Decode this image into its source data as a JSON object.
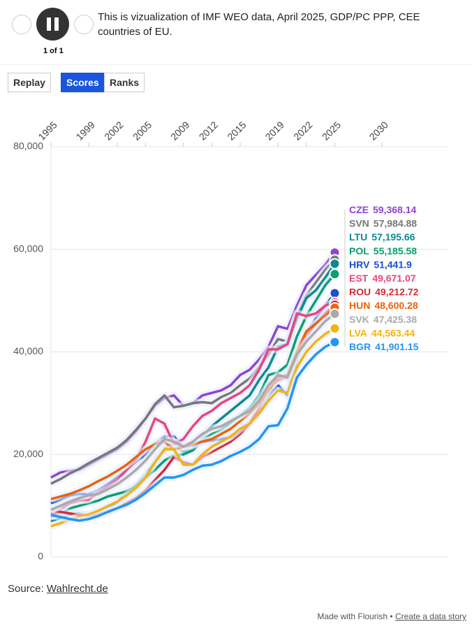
{
  "ui": {
    "title": "This is vizualization of IMF WEO data, April 2025, GDP/PC PPP, CEE countries of EU.",
    "counter": "1 of 1",
    "buttons": [
      "Replay",
      "Scores",
      "Ranks"
    ],
    "source_prefix": "Source:",
    "source_link": "Wahlrecht.de",
    "footer_made": "Made with Flourish •",
    "footer_link": "Create a data story"
  },
  "chart_data": {
    "type": "line",
    "x": [
      1995,
      1996,
      1997,
      1998,
      1999,
      2000,
      2001,
      2002,
      2003,
      2004,
      2005,
      2006,
      2007,
      2008,
      2009,
      2010,
      2011,
      2012,
      2013,
      2014,
      2015,
      2016,
      2017,
      2018,
      2019,
      2020,
      2021,
      2022,
      2023,
      2024,
      2025
    ],
    "xlim": [
      1995,
      2037
    ],
    "xticks": [
      1995,
      1999,
      2002,
      2005,
      2009,
      2012,
      2015,
      2019,
      2022,
      2025,
      2030
    ],
    "ylim": [
      0,
      80000
    ],
    "yticks": [
      0,
      {
        "value": 20000,
        "label": "20,000"
      },
      {
        "value": 40000,
        "label": "40,000"
      },
      {
        "value": 60000,
        "label": "60,000"
      },
      {
        "value": 80000,
        "label": "80,000"
      }
    ],
    "grid": true,
    "series": [
      {
        "name": "CZE",
        "color": "#8e44d2",
        "end_label": "59,368.14",
        "values": [
          15500,
          16500,
          16800,
          17000,
          18000,
          19000,
          20000,
          21000,
          22500,
          24500,
          27000,
          29500,
          31000,
          31500,
          29500,
          30000,
          31500,
          32000,
          32500,
          33500,
          35500,
          36500,
          38500,
          41000,
          45000,
          44500,
          49000,
          53000,
          55000,
          57000,
          59368.14
        ]
      },
      {
        "name": "SVN",
        "color": "#777777",
        "end_label": "57,984.88",
        "values": [
          14300,
          15200,
          16300,
          17200,
          18300,
          19300,
          20300,
          21300,
          22800,
          24800,
          27000,
          29800,
          31500,
          29200,
          29500,
          30000,
          30200,
          30000,
          31200,
          32000,
          33500,
          34800,
          37000,
          39500,
          42500,
          42000,
          47000,
          51000,
          53500,
          56000,
          57984.88
        ]
      },
      {
        "name": "LTU",
        "color": "#0e8a8f",
        "end_label": "57,195.66",
        "values": [
          7000,
          7600,
          8200,
          8500,
          8000,
          8700,
          9600,
          10700,
          12500,
          14000,
          16000,
          18500,
          21000,
          22500,
          20500,
          21000,
          23500,
          25500,
          27000,
          28500,
          30000,
          31500,
          34500,
          37000,
          41000,
          41500,
          46500,
          50500,
          52000,
          54500,
          57195.66
        ]
      },
      {
        "name": "POL",
        "color": "#0aa06e",
        "end_label": "55,185.58",
        "values": [
          7800,
          8500,
          9500,
          10000,
          10500,
          11000,
          11800,
          12300,
          12800,
          13800,
          15500,
          17000,
          18800,
          19800,
          20000,
          20800,
          22800,
          24000,
          24800,
          26200,
          27500,
          29000,
          31500,
          35500,
          36000,
          37500,
          43000,
          47000,
          50000,
          53000,
          55185.58
        ]
      },
      {
        "name": "HRV",
        "color": "#1a4fd0",
        "end_label": "51,441.9",
        "values": [
          10500,
          11200,
          12000,
          12300,
          12200,
          13000,
          14200,
          15500,
          17000,
          18600,
          20000,
          22000,
          23500,
          23500,
          21500,
          21800,
          22500,
          22700,
          23000,
          23300,
          24500,
          26000,
          28500,
          31500,
          33500,
          31500,
          38500,
          43500,
          46500,
          49000,
          51441.9
        ]
      },
      {
        "name": "EST",
        "color": "#e8467c",
        "end_label": "49,671.07",
        "values": [
          8500,
          9300,
          10500,
          11000,
          11200,
          12500,
          13800,
          15000,
          17000,
          19000,
          22500,
          27000,
          26000,
          22000,
          23000,
          25500,
          27500,
          28500,
          30000,
          31000,
          32000,
          33500,
          36500,
          40500,
          40500,
          41500,
          47500,
          47000,
          47500,
          49000,
          49671.07
        ]
      },
      {
        "name": "ROU",
        "color": "#d62936",
        "end_label": "49,212.72",
        "values": [
          8300,
          8800,
          8500,
          8200,
          8000,
          8300,
          8800,
          9500,
          10500,
          11500,
          13000,
          15000,
          17000,
          19500,
          18500,
          18000,
          19500,
          20500,
          21500,
          22500,
          24000,
          26000,
          29000,
          33000,
          34500,
          35000,
          40000,
          43000,
          45500,
          47500,
          49212.72
        ]
      },
      {
        "name": "HUN",
        "color": "#e8630a",
        "end_label": "48,600.28",
        "values": [
          11300,
          11800,
          12300,
          13000,
          13800,
          14800,
          15700,
          16800,
          18000,
          19500,
          21000,
          22000,
          22500,
          21000,
          21500,
          22000,
          22500,
          23000,
          24000,
          25000,
          26500,
          28000,
          30000,
          32500,
          35000,
          35500,
          40000,
          44000,
          45500,
          47000,
          48600.28
        ]
      },
      {
        "name": "SVK",
        "color": "#aaaaaa",
        "end_label": "47,425.38",
        "values": [
          9200,
          10000,
          10800,
          11500,
          12000,
          12300,
          13200,
          14200,
          15500,
          17000,
          18800,
          21000,
          23000,
          22500,
          21500,
          22500,
          24000,
          25000,
          25500,
          26500,
          27500,
          28500,
          30500,
          33500,
          35500,
          35000,
          39500,
          42000,
          44000,
          46000,
          47425.38
        ]
      },
      {
        "name": "LVA",
        "color": "#f0b414",
        "end_label": "44,563.44",
        "values": [
          6000,
          6600,
          7300,
          7900,
          8300,
          9000,
          9900,
          10800,
          12000,
          13500,
          15500,
          18500,
          21000,
          21000,
          18000,
          18000,
          20000,
          21500,
          22500,
          23500,
          25000,
          26000,
          28000,
          30500,
          32500,
          32000,
          37000,
          40000,
          42000,
          43500,
          44563.44
        ]
      },
      {
        "name": "BGR",
        "color": "#2196f3",
        "end_label": "41,901.15",
        "values": [
          8200,
          7800,
          7400,
          7100,
          7400,
          8000,
          8800,
          9500,
          10200,
          11200,
          12500,
          14000,
          15500,
          15500,
          16000,
          17000,
          17800,
          18000,
          18700,
          19700,
          20500,
          21500,
          23000,
          25500,
          25700,
          29000,
          35000,
          37500,
          39500,
          41000,
          41901.15
        ]
      }
    ]
  }
}
